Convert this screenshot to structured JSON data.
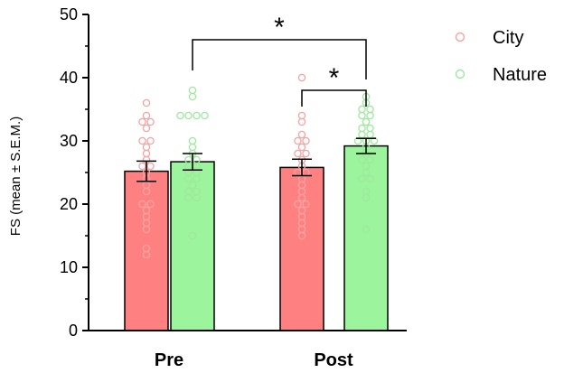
{
  "chart_data": {
    "type": "bar",
    "ylabel": "FS (mean ± S.E.M.)",
    "ylim": [
      0,
      50
    ],
    "yticks": [
      0,
      10,
      20,
      30,
      40,
      50
    ],
    "categories": [
      "Pre",
      "Post"
    ],
    "legend_position": "top-right",
    "series": [
      {
        "name": "City",
        "color": "#ff8080",
        "point_color": "#f4a3a3",
        "values": [
          25.2,
          25.8
        ],
        "sem": [
          1.6,
          1.3
        ],
        "points": [
          [
            36,
            34,
            33,
            33,
            32,
            30,
            30,
            29,
            28,
            27,
            26,
            26,
            25,
            24,
            23,
            22,
            20,
            20,
            19,
            18,
            17,
            16,
            13,
            12
          ],
          [
            40,
            34,
            33,
            31,
            30,
            30,
            29,
            28,
            28,
            27,
            26,
            25,
            25,
            24,
            23,
            22,
            21,
            20,
            20,
            19,
            18,
            17,
            16,
            15
          ]
        ]
      },
      {
        "name": "Nature",
        "color": "#9cf59c",
        "point_color": "#9ee89e",
        "values": [
          26.7,
          29.2
        ],
        "sem": [
          1.3,
          1.2
        ],
        "points": [
          [
            38,
            37,
            34,
            34,
            34,
            34,
            30,
            29,
            28,
            27,
            27,
            26,
            26,
            25,
            25,
            24,
            24,
            23,
            22,
            22,
            21,
            21,
            15
          ],
          [
            37,
            36,
            35,
            35,
            34,
            34,
            33,
            32,
            32,
            31,
            31,
            30,
            30,
            30,
            29,
            28,
            27,
            27,
            26,
            25,
            24,
            24,
            22,
            21,
            16
          ]
        ]
      }
    ],
    "annotations": [
      {
        "label": "*",
        "from": [
          "Pre",
          "Nature"
        ],
        "to": [
          "Post",
          "Nature"
        ]
      },
      {
        "label": "*",
        "from": [
          "Post",
          "City"
        ],
        "to": [
          "Post",
          "Nature"
        ]
      }
    ]
  }
}
